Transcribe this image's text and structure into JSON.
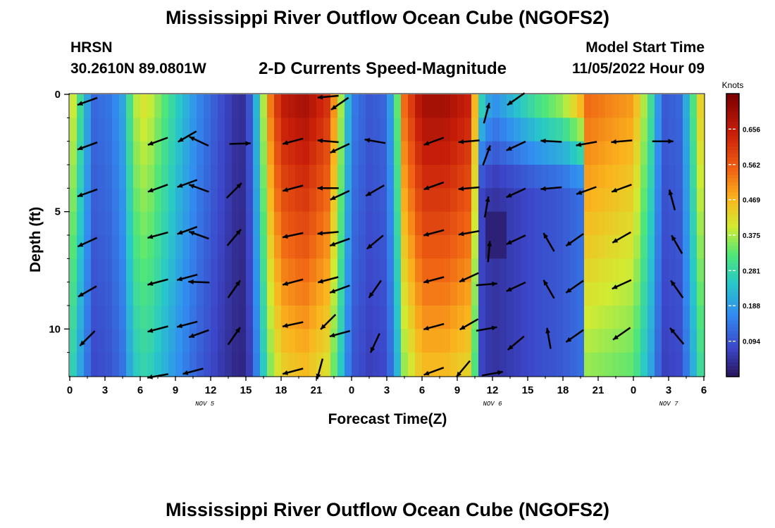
{
  "header": {
    "title": "Mississippi River Outflow Ocean Cube (NGOFS2)",
    "station": "HRSN",
    "coordinates": "30.2610N  89.0801W",
    "subtitle": "2-D Currents Speed-Magnitude",
    "model_start_label": "Model Start Time",
    "model_start_value": "11/05/2022 Hour 09"
  },
  "footer": {
    "title": "Mississippi River Outflow Ocean Cube (NGOFS2)"
  },
  "chart_data": {
    "type": "heatmap",
    "title": "2-D Currents Speed-Magnitude",
    "xlabel": "Forecast Time(Z)",
    "ylabel": "Depth (ft)",
    "x_range_hours": [
      0,
      54
    ],
    "ylim": [
      12,
      0
    ],
    "x_ticks": [
      "0",
      "3",
      "6",
      "9",
      "12",
      "15",
      "18",
      "21",
      "0",
      "3",
      "6",
      "9",
      "12",
      "15",
      "18",
      "21",
      "0",
      "3",
      "6"
    ],
    "y_ticks": [
      "0",
      "5",
      "10"
    ],
    "y_tick_values": [
      0,
      5,
      10
    ],
    "date_labels": [
      {
        "text": "NOV 5",
        "hour": 11.5
      },
      {
        "text": "NOV 6",
        "hour": 36
      },
      {
        "text": "NOV 7",
        "hour": 51
      }
    ],
    "colorbar": {
      "label": "Knots",
      "min": 0,
      "max": 0.75,
      "ticks": [
        "0.656",
        "0.562",
        "0.469",
        "0.375",
        "0.281",
        "0.188",
        "0.094"
      ],
      "tick_values": [
        0.656,
        0.562,
        0.469,
        0.375,
        0.281,
        0.188,
        0.094
      ]
    },
    "speed_profile_surface": [
      {
        "hour": 0,
        "speed": 0.45
      },
      {
        "hour": 1,
        "speed": 0.28
      },
      {
        "hour": 2,
        "speed": 0.12
      },
      {
        "hour": 3.5,
        "speed": 0.14
      },
      {
        "hour": 4.5,
        "speed": 0.2
      },
      {
        "hour": 5.5,
        "speed": 0.38
      },
      {
        "hour": 6.5,
        "speed": 0.42
      },
      {
        "hour": 8,
        "speed": 0.33
      },
      {
        "hour": 9.5,
        "speed": 0.24
      },
      {
        "hour": 11,
        "speed": 0.16
      },
      {
        "hour": 12.5,
        "speed": 0.1
      },
      {
        "hour": 14,
        "speed": 0.05
      },
      {
        "hour": 15,
        "speed": 0.04
      },
      {
        "hour": 15.6,
        "speed": 0.15
      },
      {
        "hour": 16.2,
        "speed": 0.3
      },
      {
        "hour": 17,
        "speed": 0.52
      },
      {
        "hour": 18,
        "speed": 0.66
      },
      {
        "hour": 20,
        "speed": 0.7
      },
      {
        "hour": 22,
        "speed": 0.62
      },
      {
        "hour": 23,
        "speed": 0.4
      },
      {
        "hour": 24,
        "speed": 0.15
      },
      {
        "hour": 25.5,
        "speed": 0.1
      },
      {
        "hour": 27,
        "speed": 0.12
      },
      {
        "hour": 27.8,
        "speed": 0.3
      },
      {
        "hour": 28.5,
        "speed": 0.55
      },
      {
        "hour": 30,
        "speed": 0.7
      },
      {
        "hour": 32,
        "speed": 0.7
      },
      {
        "hour": 34,
        "speed": 0.65
      },
      {
        "hour": 35,
        "speed": 0.3
      },
      {
        "hour": 36,
        "speed": 0.18
      },
      {
        "hour": 38,
        "speed": 0.26
      },
      {
        "hour": 40,
        "speed": 0.34
      },
      {
        "hour": 42,
        "speed": 0.4
      },
      {
        "hour": 44,
        "speed": 0.55
      },
      {
        "hour": 48,
        "speed": 0.5
      },
      {
        "hour": 49.5,
        "speed": 0.3
      },
      {
        "hour": 50.5,
        "speed": 0.1
      },
      {
        "hour": 52,
        "speed": 0.12
      },
      {
        "hour": 53,
        "speed": 0.3
      },
      {
        "hour": 54,
        "speed": 0.5
      }
    ],
    "vectors": [
      {
        "hour": 1.5,
        "depth": 0.3,
        "angle": -20
      },
      {
        "hour": 1.5,
        "depth": 2.2,
        "angle": -20
      },
      {
        "hour": 1.5,
        "depth": 4.2,
        "angle": -20
      },
      {
        "hour": 1.5,
        "depth": 6.3,
        "angle": -25
      },
      {
        "hour": 1.5,
        "depth": 8.4,
        "angle": -30
      },
      {
        "hour": 1.5,
        "depth": 10.4,
        "angle": -45
      },
      {
        "hour": 7.5,
        "depth": 2.0,
        "angle": -20
      },
      {
        "hour": 7.5,
        "depth": 4.0,
        "angle": -20
      },
      {
        "hour": 7.5,
        "depth": 6.0,
        "angle": -15
      },
      {
        "hour": 7.5,
        "depth": 8.0,
        "angle": -15
      },
      {
        "hour": 7.5,
        "depth": 10.0,
        "angle": -15
      },
      {
        "hour": 7.5,
        "depth": 12.0,
        "angle": -10
      },
      {
        "hour": 10,
        "depth": 1.8,
        "angle": -30
      },
      {
        "hour": 11,
        "depth": 2.0,
        "angle": 25
      },
      {
        "hour": 10,
        "depth": 3.8,
        "angle": -20
      },
      {
        "hour": 11,
        "depth": 4.0,
        "angle": 20
      },
      {
        "hour": 10,
        "depth": 5.8,
        "angle": -20
      },
      {
        "hour": 11,
        "depth": 6.0,
        "angle": 20
      },
      {
        "hour": 10,
        "depth": 7.8,
        "angle": -15
      },
      {
        "hour": 11,
        "depth": 8.0,
        "angle": 2
      },
      {
        "hour": 10,
        "depth": 9.8,
        "angle": -15
      },
      {
        "hour": 11,
        "depth": 10.2,
        "angle": -20
      },
      {
        "hour": 10.5,
        "depth": 11.8,
        "angle": -15
      },
      {
        "hour": 14.5,
        "depth": 2.1,
        "angle": 178
      },
      {
        "hour": 14,
        "depth": 4.1,
        "angle": 135
      },
      {
        "hour": 14,
        "depth": 6.1,
        "angle": 130
      },
      {
        "hour": 14,
        "depth": 8.3,
        "angle": 125
      },
      {
        "hour": 14,
        "depth": 10.3,
        "angle": 125
      },
      {
        "hour": 19,
        "depth": 2.0,
        "angle": -15
      },
      {
        "hour": 19,
        "depth": 4.0,
        "angle": -15
      },
      {
        "hour": 19,
        "depth": 6.0,
        "angle": -12
      },
      {
        "hour": 19,
        "depth": 8.0,
        "angle": -15
      },
      {
        "hour": 19,
        "depth": 9.8,
        "angle": -12
      },
      {
        "hour": 19,
        "depth": 11.8,
        "angle": -15
      },
      {
        "hour": 22,
        "depth": 0.1,
        "angle": -5
      },
      {
        "hour": 22,
        "depth": 2.0,
        "angle": 5
      },
      {
        "hour": 22,
        "depth": 4.0,
        "angle": 0
      },
      {
        "hour": 22,
        "depth": 5.9,
        "angle": -5
      },
      {
        "hour": 22,
        "depth": 7.9,
        "angle": -15
      },
      {
        "hour": 22,
        "depth": 9.7,
        "angle": -45
      },
      {
        "hour": 21.3,
        "depth": 11.7,
        "angle": -75
      },
      {
        "hour": 23,
        "depth": 0.4,
        "angle": -35
      },
      {
        "hour": 23,
        "depth": 2.3,
        "angle": -25
      },
      {
        "hour": 23,
        "depth": 4.3,
        "angle": -25
      },
      {
        "hour": 23,
        "depth": 6.3,
        "angle": -20
      },
      {
        "hour": 23,
        "depth": 8.3,
        "angle": -20
      },
      {
        "hour": 23,
        "depth": 10.2,
        "angle": -15
      },
      {
        "hour": 26,
        "depth": 2.0,
        "angle": 10
      },
      {
        "hour": 26,
        "depth": 4.1,
        "angle": -30
      },
      {
        "hour": 26,
        "depth": 6.3,
        "angle": -40
      },
      {
        "hour": 26,
        "depth": 8.3,
        "angle": -55
      },
      {
        "hour": 26,
        "depth": 10.6,
        "angle": -65
      },
      {
        "hour": 31,
        "depth": 2.0,
        "angle": -20
      },
      {
        "hour": 31,
        "depth": 3.9,
        "angle": -20
      },
      {
        "hour": 31,
        "depth": 5.9,
        "angle": -15
      },
      {
        "hour": 31,
        "depth": 7.9,
        "angle": -15
      },
      {
        "hour": 31,
        "depth": 9.9,
        "angle": -15
      },
      {
        "hour": 31,
        "depth": 11.8,
        "angle": -20
      },
      {
        "hour": 34,
        "depth": 2.0,
        "angle": -5
      },
      {
        "hour": 34,
        "depth": 4.0,
        "angle": -5
      },
      {
        "hour": 34,
        "depth": 5.9,
        "angle": -10
      },
      {
        "hour": 34,
        "depth": 7.8,
        "angle": -25
      },
      {
        "hour": 34,
        "depth": 9.8,
        "angle": -30
      },
      {
        "hour": 33.5,
        "depth": 11.7,
        "angle": -50
      },
      {
        "hour": 35.5,
        "depth": 0.8,
        "angle": 105
      },
      {
        "hour": 35.5,
        "depth": 2.6,
        "angle": 110
      },
      {
        "hour": 35.5,
        "depth": 4.8,
        "angle": 100
      },
      {
        "hour": 35.7,
        "depth": 6.7,
        "angle": 95
      },
      {
        "hour": 35.5,
        "depth": 8.1,
        "angle": 175
      },
      {
        "hour": 35.5,
        "depth": 10.0,
        "angle": 170
      },
      {
        "hour": 36,
        "depth": 11.9,
        "angle": 170
      },
      {
        "hour": 38,
        "depth": 0.2,
        "angle": -35
      },
      {
        "hour": 38,
        "depth": 2.2,
        "angle": -25
      },
      {
        "hour": 38,
        "depth": 4.2,
        "angle": -25
      },
      {
        "hour": 38,
        "depth": 6.2,
        "angle": -25
      },
      {
        "hour": 38,
        "depth": 8.2,
        "angle": -25
      },
      {
        "hour": 38,
        "depth": 10.6,
        "angle": -40
      },
      {
        "hour": 41,
        "depth": 2.0,
        "angle": 3
      },
      {
        "hour": 41,
        "depth": 4.0,
        "angle": -5
      },
      {
        "hour": 40.8,
        "depth": 6.3,
        "angle": 60
      },
      {
        "hour": 40.8,
        "depth": 8.3,
        "angle": 60
      },
      {
        "hour": 40.8,
        "depth": 10.4,
        "angle": 80
      },
      {
        "hour": 44,
        "depth": 2.1,
        "angle": -10
      },
      {
        "hour": 44,
        "depth": 4.1,
        "angle": -20
      },
      {
        "hour": 43,
        "depth": 6.2,
        "angle": -35
      },
      {
        "hour": 43,
        "depth": 8.2,
        "angle": -35
      },
      {
        "hour": 43,
        "depth": 10.3,
        "angle": -35
      },
      {
        "hour": 47,
        "depth": 2.0,
        "angle": -5
      },
      {
        "hour": 47,
        "depth": 4.0,
        "angle": -20
      },
      {
        "hour": 47,
        "depth": 6.1,
        "angle": -30
      },
      {
        "hour": 47,
        "depth": 8.1,
        "angle": -25
      },
      {
        "hour": 47,
        "depth": 10.2,
        "angle": -35
      },
      {
        "hour": 50.5,
        "depth": 2.0,
        "angle": 180
      },
      {
        "hour": 51.3,
        "depth": 4.5,
        "angle": 75
      },
      {
        "hour": 51.7,
        "depth": 6.4,
        "angle": 60
      },
      {
        "hour": 51.7,
        "depth": 8.3,
        "angle": 55
      },
      {
        "hour": 51.7,
        "depth": 10.3,
        "angle": 50
      }
    ]
  }
}
